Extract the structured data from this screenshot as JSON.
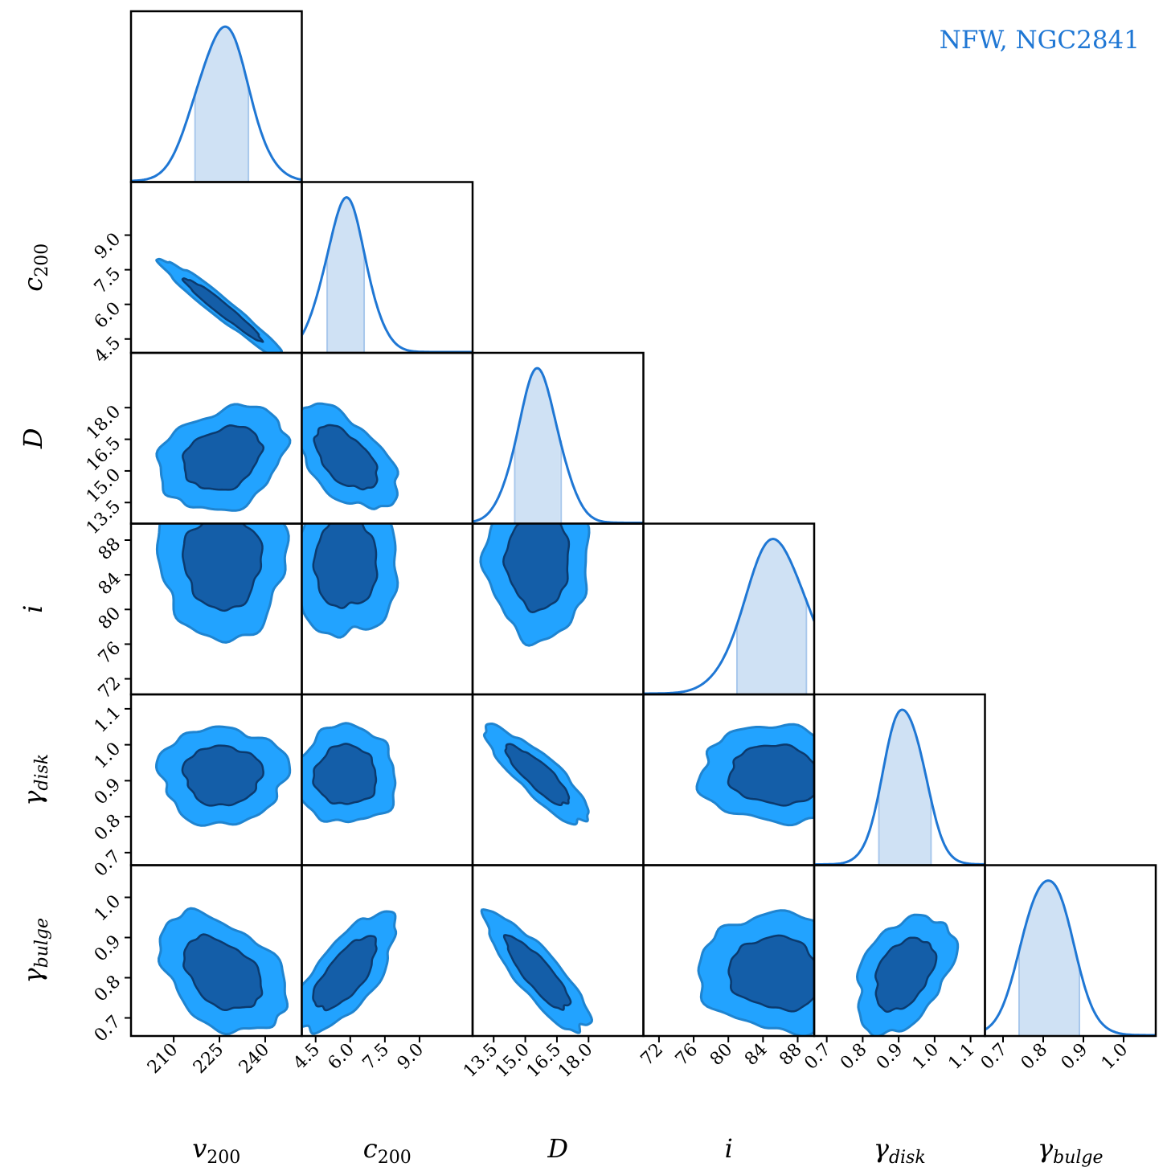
{
  "chart_data": {
    "type": "corner",
    "title": "NFW, NGC2841",
    "colors": {
      "line": "#1f77d4",
      "outer_contour": "#22a3ff",
      "inner_contour": "#145ea8",
      "inner_edge": "#0b3a6e",
      "band": "#cfe1f4",
      "frame": "#000000"
    },
    "params": [
      {
        "key": "v200",
        "label": "v200",
        "label_main": "v",
        "label_sub": "200",
        "range": [
          196,
          252
        ],
        "ticks": [
          "210",
          "225",
          "240"
        ],
        "mean": 226,
        "sd": 8.5,
        "band": [
          217,
          234.5
        ]
      },
      {
        "key": "c200",
        "label": "c200",
        "label_main": "c",
        "label_sub": "200",
        "range": [
          3.9,
          11.3
        ],
        "ticks": [
          "4.5",
          "6.0",
          "7.5",
          "9.0"
        ],
        "mean": 5.8,
        "sd": 0.9,
        "band": [
          5.0,
          6.6
        ]
      },
      {
        "key": "D",
        "label": "D",
        "label_main": "D",
        "label_sub": "",
        "range": [
          12.5,
          20.6
        ],
        "ticks": [
          "13.5",
          "15.0",
          "16.5",
          "18.0"
        ],
        "mean": 15.6,
        "sd": 1.0,
        "band": [
          14.5,
          16.7
        ]
      },
      {
        "key": "i",
        "label": "i",
        "label_main": "i",
        "label_sub": "",
        "range": [
          70.2,
          89.9
        ],
        "ticks": [
          "72",
          "76",
          "80",
          "84",
          "88"
        ],
        "mean": 85.5,
        "sd": 3.6,
        "band": [
          81.0,
          89.0
        ]
      },
      {
        "key": "gdisk",
        "label": "γdisk",
        "label_main": "γ",
        "label_sub": "disk",
        "range": [
          0.665,
          1.14
        ],
        "ticks": [
          "0.7",
          "0.8",
          "0.9",
          "1.0",
          "1.1"
        ],
        "mean": 0.915,
        "sd": 0.055,
        "band": [
          0.845,
          0.99
        ]
      },
      {
        "key": "gbulge",
        "label": "γbulge",
        "label_main": "γ",
        "label_sub": "bulge",
        "range": [
          0.655,
          1.08
        ],
        "ticks": [
          "0.7",
          "0.8",
          "0.9",
          "1.0"
        ],
        "mean": 0.81,
        "sd": 0.06,
        "band": [
          0.74,
          0.89
        ]
      }
    ],
    "correlations": {
      "1-0": -0.97,
      "2-0": 0.25,
      "2-1": -0.55,
      "3-0": 0.0,
      "3-1": 0.0,
      "3-2": 0.0,
      "4-0": 0.0,
      "4-1": 0.0,
      "4-2": -0.85,
      "4-3": -0.1,
      "5-0": -0.4,
      "5-1": 0.7,
      "5-2": -0.85,
      "5-3": -0.1,
      "5-4": 0.4
    }
  }
}
